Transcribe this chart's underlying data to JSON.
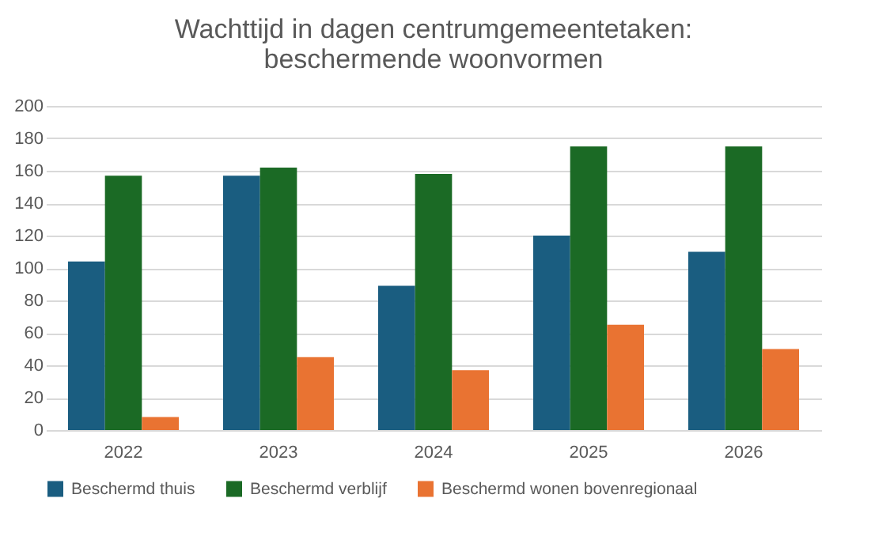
{
  "chart_data": {
    "type": "bar",
    "title": "Wachttijd in dagen centrumgemeentetaken:\nbeschermende woonvormen",
    "categories": [
      "2022",
      "2023",
      "2024",
      "2025",
      "2026"
    ],
    "series": [
      {
        "name": "Beschermd thuis",
        "color": "#1a5d80",
        "values": [
          104,
          157,
          89,
          120,
          110
        ]
      },
      {
        "name": "Beschermd verblijf",
        "color": "#1b6a25",
        "values": [
          157,
          162,
          158,
          175,
          175
        ]
      },
      {
        "name": "Beschermd wonen bovenregionaal",
        "color": "#e97332",
        "values": [
          8,
          45,
          37,
          65,
          50
        ]
      }
    ],
    "ylim": [
      0,
      200
    ],
    "yticks": [
      0,
      20,
      40,
      60,
      80,
      100,
      120,
      140,
      160,
      180,
      200
    ],
    "grid": "y",
    "legend": "bottom"
  }
}
